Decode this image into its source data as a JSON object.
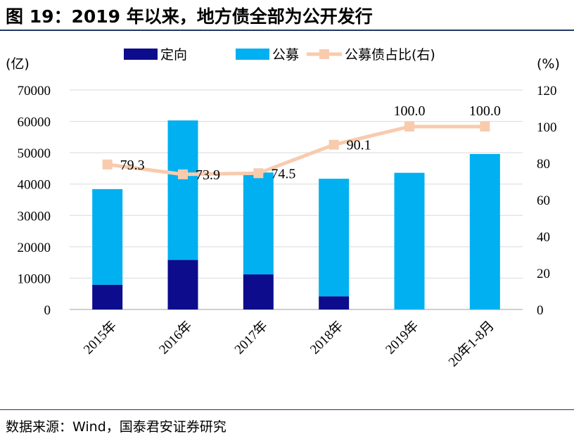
{
  "title": "图 19：2019 年以来，地方债全部为公开发行",
  "source": "数据来源：Wind，国泰君安证券研究",
  "chart_data": {
    "type": "bar",
    "stacked": true,
    "categories": [
      "2015年",
      "2016年",
      "2017年",
      "2018年",
      "2019年",
      "20年1-8月"
    ],
    "series": [
      {
        "name": "定向",
        "type": "bar",
        "axis": "left",
        "color": "#0c0c8c",
        "values": [
          7900,
          15800,
          11200,
          4200,
          0,
          0
        ]
      },
      {
        "name": "公募",
        "type": "bar",
        "axis": "left",
        "color": "#00b0f0",
        "values": [
          30500,
          44500,
          32500,
          37500,
          43600,
          49600
        ]
      },
      {
        "name": "公募债占比(右)",
        "type": "line",
        "axis": "right",
        "color": "#f8cbad",
        "values": [
          79.3,
          73.9,
          74.5,
          90.1,
          100.0,
          100.0
        ],
        "labels": [
          "79.3",
          "73.9",
          "74.5",
          "90.1",
          "100.0",
          "100.0"
        ]
      }
    ],
    "left_axis": {
      "unit": "(亿)",
      "min": 0,
      "max": 70000,
      "ticks": [
        "0",
        "10000",
        "20000",
        "30000",
        "40000",
        "50000",
        "60000",
        "70000"
      ]
    },
    "right_axis": {
      "unit": "(%)",
      "min": 0,
      "max": 120,
      "ticks": [
        "0",
        "20",
        "40",
        "60",
        "80",
        "100",
        "120"
      ]
    },
    "grid": true,
    "legend": "top"
  }
}
